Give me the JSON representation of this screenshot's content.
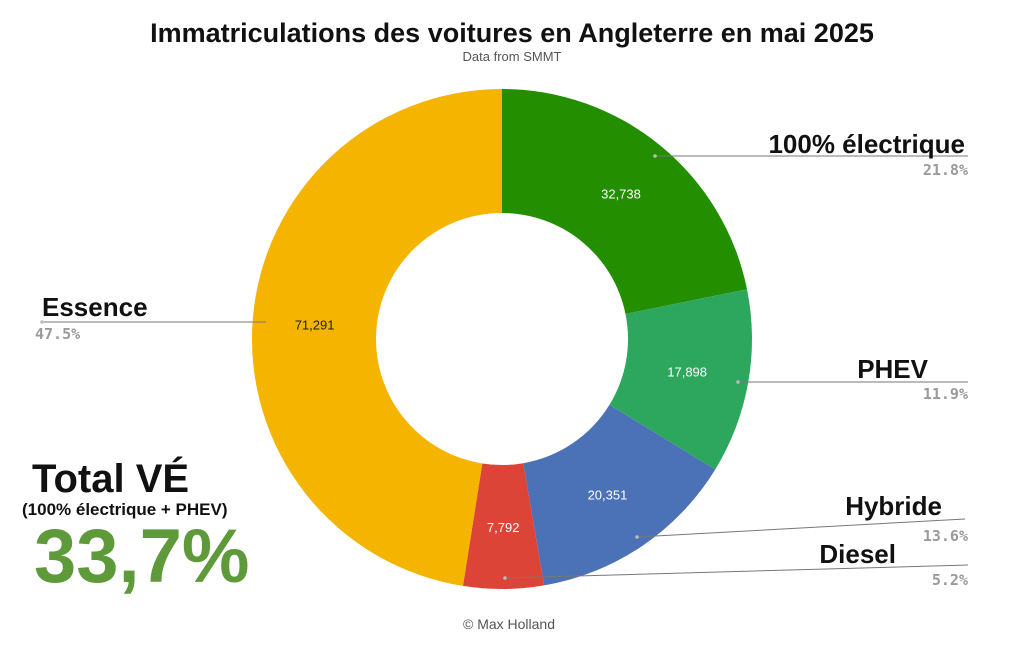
{
  "chart_data": {
    "type": "pie",
    "title": "Immatriculations des voitures en Angleterre en mai 2025",
    "subtitle": "Data from SMMT",
    "credit": "© Max Holland",
    "slices": [
      {
        "label": "100% électrique",
        "value": 32738,
        "value_label": "32,738",
        "percent_label": "21.8%",
        "color": "#238e00"
      },
      {
        "label": "PHEV",
        "value": 17898,
        "value_label": "17,898",
        "percent_label": "11.9%",
        "color": "#2ea75e"
      },
      {
        "label": "Hybride",
        "value": 20351,
        "value_label": "20,351",
        "percent_label": "13.6%",
        "color": "#4b72b6"
      },
      {
        "label": "Diesel",
        "value": 7792,
        "value_label": "7,792",
        "percent_label": "5.2%",
        "color": "#dc4437"
      },
      {
        "label": "Essence",
        "value": 71291,
        "value_label": "71,291",
        "percent_label": "47.5%",
        "color": "#f4b400"
      }
    ],
    "total": {
      "title": "Total VÉ",
      "subtitle": "(100% électrique + PHEV)",
      "value": "33,7%",
      "color": "#5e9a3a"
    }
  }
}
